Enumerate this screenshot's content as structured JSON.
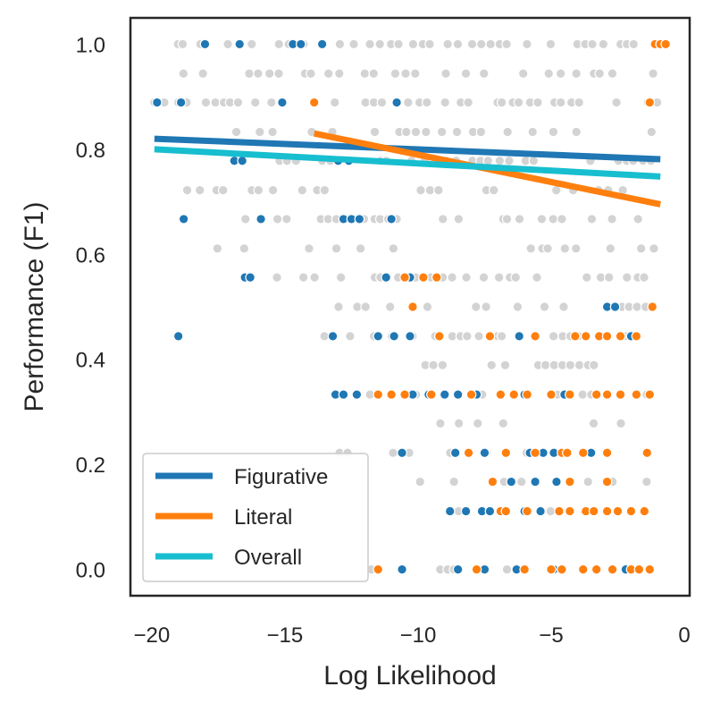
{
  "chart_data": {
    "type": "scatter",
    "xlabel": "Log Likelihood",
    "ylabel": "Performance (F1)",
    "xlim": [
      -20.8,
      0.2
    ],
    "ylim": [
      -0.05,
      1.05
    ],
    "x_ticks": [
      -20,
      -15,
      -10,
      -5,
      0
    ],
    "x_tick_labels": [
      "−20",
      "−15",
      "−10",
      "−5",
      "0"
    ],
    "y_ticks": [
      0.0,
      0.2,
      0.4,
      0.6,
      0.8,
      1.0
    ],
    "y_tick_labels": [
      "0.0",
      "0.2",
      "0.4",
      "0.6",
      "0.8",
      "1.0"
    ],
    "grid": false,
    "legend_position": "lower-left",
    "colors": {
      "figurative": "#1f77b4",
      "literal": "#ff7f0e",
      "overall": "#17becf",
      "other_points": "#d3d3d3"
    },
    "series": [
      {
        "name": "Figurative",
        "kind": "points",
        "points": [
          [
            -18,
            1.0
          ],
          [
            -16.7,
            1.0
          ],
          [
            -14.7,
            1.0
          ],
          [
            -14.4,
            1.0
          ],
          [
            -13.6,
            1.0
          ],
          [
            -19.8,
            0.889
          ],
          [
            -18.9,
            0.889
          ],
          [
            -15.1,
            0.889
          ],
          [
            -10.8,
            0.889
          ],
          [
            -16.9,
            0.778
          ],
          [
            -16.6,
            0.778
          ],
          [
            -13.0,
            0.778
          ],
          [
            -12.6,
            0.778
          ],
          [
            -18.8,
            0.667
          ],
          [
            -15.9,
            0.667
          ],
          [
            -12.8,
            0.667
          ],
          [
            -12.5,
            0.667
          ],
          [
            -12.2,
            0.667
          ],
          [
            -11.0,
            0.667
          ],
          [
            -16.5,
            0.556
          ],
          [
            -16.3,
            0.556
          ],
          [
            -11.2,
            0.556
          ],
          [
            -10.3,
            0.556
          ],
          [
            -2.9,
            0.5
          ],
          [
            -2.6,
            0.5
          ],
          [
            -19.0,
            0.444
          ],
          [
            -13.2,
            0.444
          ],
          [
            -11.5,
            0.444
          ],
          [
            -10.9,
            0.444
          ],
          [
            -10.3,
            0.444
          ],
          [
            -6.2,
            0.444
          ],
          [
            -2.0,
            0.444
          ],
          [
            -13.1,
            0.333
          ],
          [
            -12.8,
            0.333
          ],
          [
            -12.3,
            0.333
          ],
          [
            -10.2,
            0.333
          ],
          [
            -9.6,
            0.333
          ],
          [
            -9.0,
            0.333
          ],
          [
            -8.5,
            0.333
          ],
          [
            -7.8,
            0.333
          ],
          [
            -6.0,
            0.333
          ],
          [
            -4.5,
            0.333
          ],
          [
            -10.6,
            0.222
          ],
          [
            -8.6,
            0.222
          ],
          [
            -7.5,
            0.222
          ],
          [
            -5.8,
            0.222
          ],
          [
            -5.3,
            0.222
          ],
          [
            -4.9,
            0.222
          ],
          [
            -3.5,
            0.222
          ],
          [
            -6.5,
            0.167
          ],
          [
            -5.6,
            0.167
          ],
          [
            -4.8,
            0.167
          ],
          [
            -8.8,
            0.111
          ],
          [
            -8.2,
            0.111
          ],
          [
            -7.6,
            0.111
          ],
          [
            -7.3,
            0.111
          ],
          [
            -6.0,
            0.111
          ],
          [
            -5.4,
            0.111
          ],
          [
            -10.6,
            0.0
          ],
          [
            -8.5,
            0.0
          ],
          [
            -7.5,
            0.0
          ],
          [
            -6.3,
            0.0
          ],
          [
            -4.9,
            0.0
          ],
          [
            -2.2,
            0.0
          ]
        ]
      },
      {
        "name": "Literal",
        "kind": "points",
        "points": [
          [
            -1.1,
            1.0
          ],
          [
            -0.9,
            1.0
          ],
          [
            -0.7,
            1.0
          ],
          [
            -13.9,
            0.889
          ],
          [
            -1.3,
            0.889
          ],
          [
            -10.5,
            0.556
          ],
          [
            -9.8,
            0.556
          ],
          [
            -9.3,
            0.556
          ],
          [
            -10.2,
            0.5
          ],
          [
            -1.2,
            0.5
          ],
          [
            -9.2,
            0.444
          ],
          [
            -7.3,
            0.444
          ],
          [
            -5.6,
            0.444
          ],
          [
            -4.1,
            0.444
          ],
          [
            -3.7,
            0.444
          ],
          [
            -3.2,
            0.444
          ],
          [
            -2.9,
            0.444
          ],
          [
            -2.4,
            0.444
          ],
          [
            -1.8,
            0.444
          ],
          [
            -11.5,
            0.333
          ],
          [
            -11.0,
            0.333
          ],
          [
            -10.5,
            0.333
          ],
          [
            -9.5,
            0.333
          ],
          [
            -8.0,
            0.333
          ],
          [
            -6.9,
            0.333
          ],
          [
            -6.4,
            0.333
          ],
          [
            -5.9,
            0.333
          ],
          [
            -5.0,
            0.333
          ],
          [
            -4.3,
            0.333
          ],
          [
            -3.3,
            0.333
          ],
          [
            -2.9,
            0.333
          ],
          [
            -2.4,
            0.333
          ],
          [
            -1.8,
            0.333
          ],
          [
            -1.3,
            0.333
          ],
          [
            -8.1,
            0.222
          ],
          [
            -6.7,
            0.222
          ],
          [
            -5.6,
            0.222
          ],
          [
            -4.6,
            0.222
          ],
          [
            -4.4,
            0.222
          ],
          [
            -3.8,
            0.222
          ],
          [
            -2.9,
            0.222
          ],
          [
            -1.4,
            0.222
          ],
          [
            -7.2,
            0.167
          ],
          [
            -4.3,
            0.167
          ],
          [
            -2.9,
            0.167
          ],
          [
            -6.9,
            0.111
          ],
          [
            -6.7,
            0.111
          ],
          [
            -5.9,
            0.111
          ],
          [
            -4.7,
            0.111
          ],
          [
            -4.3,
            0.111
          ],
          [
            -3.7,
            0.111
          ],
          [
            -3.4,
            0.111
          ],
          [
            -2.9,
            0.111
          ],
          [
            -2.5,
            0.111
          ],
          [
            -2.0,
            0.111
          ],
          [
            -1.5,
            0.111
          ],
          [
            -11.5,
            0.0
          ],
          [
            -7.8,
            0.0
          ],
          [
            -6.0,
            0.0
          ],
          [
            -5.0,
            0.0
          ],
          [
            -4.6,
            0.0
          ],
          [
            -3.8,
            0.0
          ],
          [
            -3.3,
            0.0
          ],
          [
            -2.7,
            0.0
          ],
          [
            -2.0,
            0.0
          ],
          [
            -1.7,
            0.0
          ],
          [
            -1.3,
            0.0
          ]
        ]
      },
      {
        "name": "Figurative",
        "kind": "trend",
        "x": [
          -19.9,
          -0.9
        ],
        "y": [
          0.82,
          0.781
        ]
      },
      {
        "name": "Literal",
        "kind": "trend",
        "x": [
          -13.9,
          -0.9
        ],
        "y": [
          0.83,
          0.695
        ]
      },
      {
        "name": "Overall",
        "kind": "trend",
        "x": [
          -19.9,
          -0.9
        ],
        "y": [
          0.8,
          0.748
        ]
      }
    ],
    "legend": [
      "Figurative",
      "Literal",
      "Overall"
    ]
  }
}
